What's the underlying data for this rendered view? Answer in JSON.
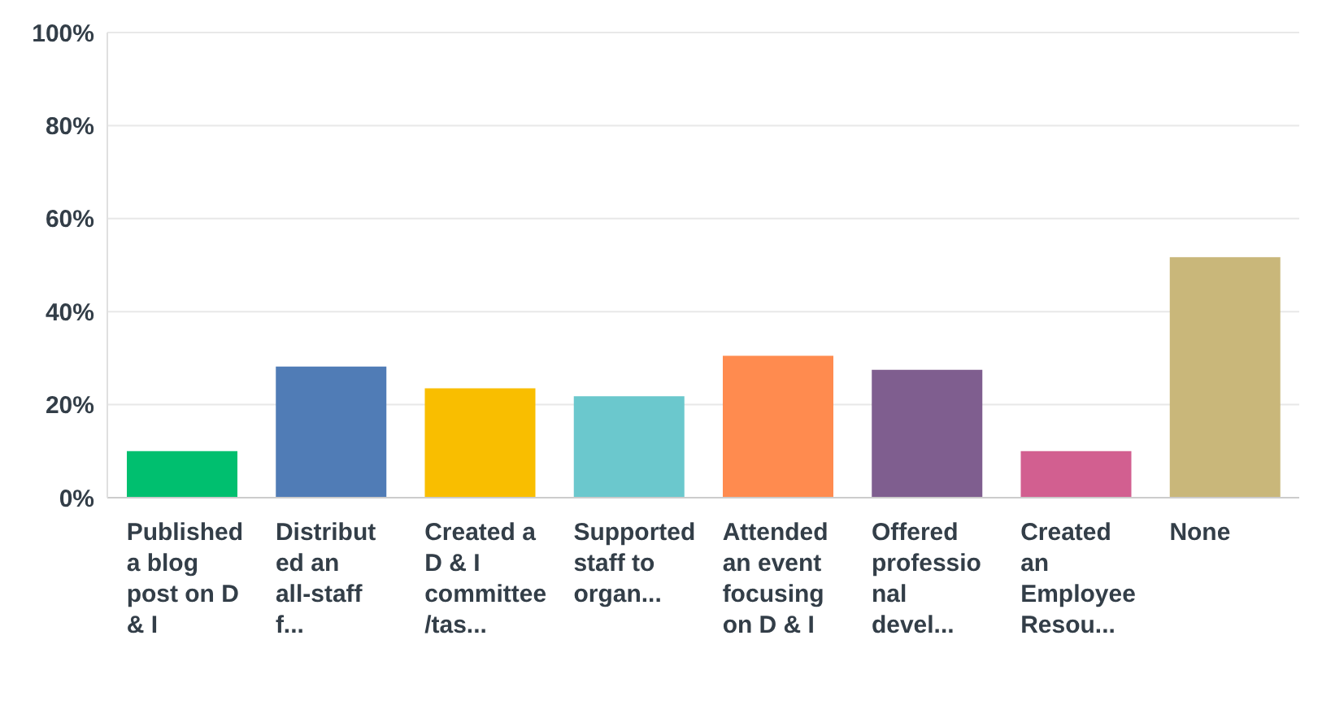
{
  "chart_data": {
    "type": "bar",
    "categories": [
      "Published a blog post on D & I",
      "Distributed an all-staff f...",
      "Created a D & I committee/tas...",
      "Supported staff to organ...",
      "Attended an event focusing on D & I",
      "Offered professional devel...",
      "Created an Employee Resou...",
      "None"
    ],
    "values": [
      10,
      28.2,
      23.5,
      21.8,
      30.5,
      27.5,
      10,
      51.7
    ],
    "colors": [
      "#00bf6f",
      "#507cb6",
      "#f9be00",
      "#6bc8cd",
      "#ff8b4f",
      "#7f5e8f",
      "#d25f90",
      "#c9b77a"
    ],
    "ylim": [
      0,
      100
    ],
    "yticks": [
      {
        "value": 0,
        "label": "0%"
      },
      {
        "value": 20,
        "label": "20%"
      },
      {
        "value": 40,
        "label": "40%"
      },
      {
        "value": 60,
        "label": "60%"
      },
      {
        "value": 80,
        "label": "80%"
      },
      {
        "value": 100,
        "label": "100%"
      }
    ],
    "grid": "y"
  }
}
